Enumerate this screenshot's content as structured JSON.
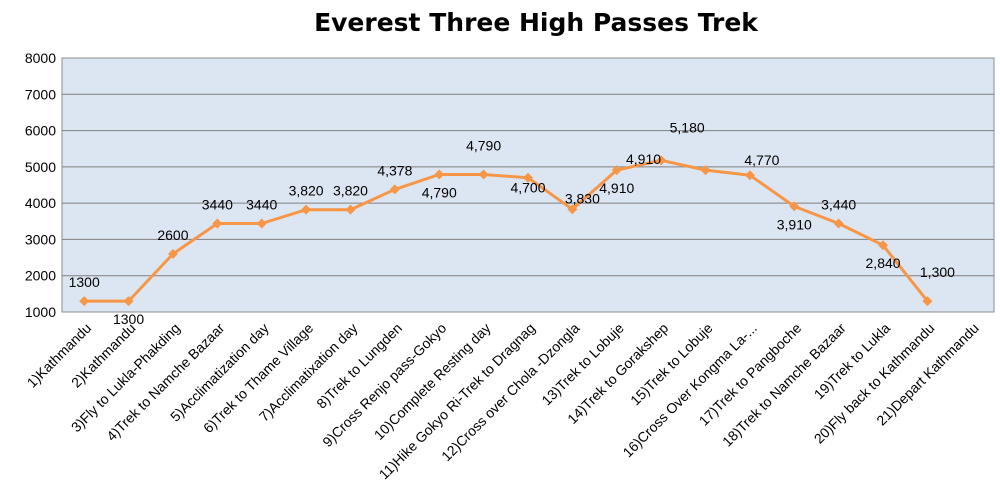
{
  "chart_data": {
    "type": "line",
    "title": "Everest Three High Passes Trek",
    "xlabel": "",
    "ylabel": "",
    "ylim": [
      1000,
      8000
    ],
    "yticks": [
      "1000",
      "2000",
      "3000",
      "4000",
      "5000",
      "6000",
      "7000",
      "8000"
    ],
    "grid": true,
    "legend": "none",
    "colors": {
      "line": "#F79646",
      "plot_bg": "#DCE6F2",
      "grid": "#7F7F7F"
    },
    "categories": [
      "1)Kathmandu",
      "2)Kathmandu",
      "3)Fly to Lukla-Phakding",
      "4)Trek to Namche Bazaar",
      "5)Acclimatization day",
      "6)Trek to Thame Village",
      "7)Acclimatixation day",
      "8)Trek to Lungden",
      "9)Cross Renjo pass-Gokyo",
      "10)Complete Resting day",
      "11)Hike Gokyo Ri-Trek to Dragnag",
      "12)Cross over Chola -Dzongla",
      "13)Trek to Lobuje",
      "14)Trek to Gorakshep",
      "15)Trek to Lobuje",
      "16)Cross Over Kongma La-...",
      "17)Trek to Pangboche",
      "18)Trek to Namche Bazaar",
      "19)Trek to Lukla",
      "20)Fly back to Kathmandu",
      "21)Depart Kathmandu"
    ],
    "values": [
      1300,
      1300,
      2600,
      3440,
      3440,
      3820,
      3820,
      4378,
      4790,
      4790,
      4700,
      3830,
      4910,
      5180,
      4910,
      4770,
      3910,
      3440,
      2840,
      1300,
      null
    ],
    "data_labels": [
      "1300",
      "1300",
      "2600",
      "3440",
      "3440",
      "3,820",
      "3,820",
      "4,378",
      "4,790",
      "4,790",
      "4,700",
      "3,830",
      "4,910",
      "5,180",
      "4,910",
      "4,770",
      "3,910",
      "3,440",
      "2,840",
      "1,300",
      ""
    ]
  }
}
